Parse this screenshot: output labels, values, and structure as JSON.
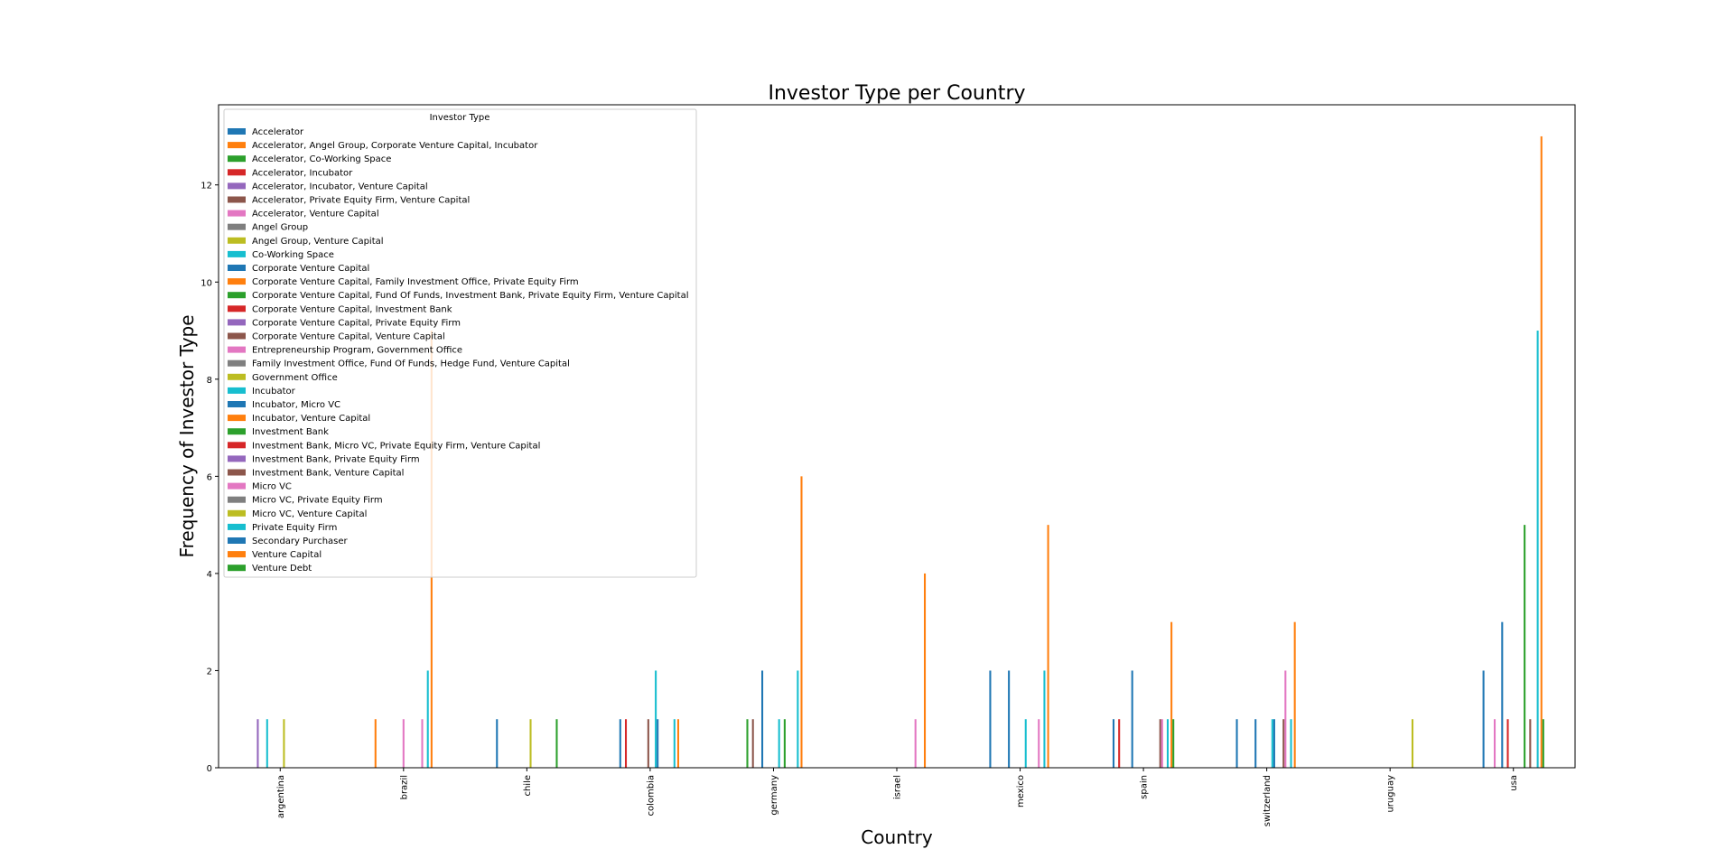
{
  "chart_data": {
    "type": "bar",
    "title": "Investor Type per Country",
    "xlabel": "Country",
    "ylabel": "Frequency of Investor Type",
    "ylim": [
      0,
      13.65
    ],
    "yticks": [
      0,
      2,
      4,
      6,
      8,
      10,
      12
    ],
    "legend_title": "Investor Type",
    "legend_placement": "upper-left",
    "grid": false,
    "categories": [
      "argentina",
      "brazil",
      "chile",
      "colombia",
      "germany",
      "israel",
      "mexico",
      "spain",
      "switzerland",
      "uruguay",
      "usa"
    ],
    "series": [
      {
        "name": "Accelerator",
        "color": "#1f77b4",
        "values": [
          0,
          0,
          1,
          1,
          0,
          0,
          2,
          1,
          1,
          0,
          2
        ]
      },
      {
        "name": "Accelerator, Angel Group, Corporate Venture Capital, Incubator",
        "color": "#ff7f0e",
        "values": [
          0,
          1,
          0,
          0,
          0,
          0,
          0,
          0,
          0,
          0,
          0
        ]
      },
      {
        "name": "Accelerator, Co-Working Space",
        "color": "#2ca02c",
        "values": [
          0,
          0,
          0,
          0,
          1,
          0,
          0,
          0,
          0,
          0,
          0
        ]
      },
      {
        "name": "Accelerator, Incubator",
        "color": "#d62728",
        "values": [
          0,
          0,
          0,
          1,
          0,
          0,
          0,
          1,
          0,
          0,
          0
        ]
      },
      {
        "name": "Accelerator, Incubator, Venture Capital",
        "color": "#9467bd",
        "values": [
          1,
          0,
          0,
          0,
          0,
          0,
          0,
          0,
          0,
          0,
          0
        ]
      },
      {
        "name": "Accelerator, Private Equity Firm, Venture Capital",
        "color": "#8c564b",
        "values": [
          0,
          0,
          0,
          0,
          1,
          0,
          0,
          0,
          0,
          0,
          0
        ]
      },
      {
        "name": "Accelerator, Venture Capital",
        "color": "#e377c2",
        "values": [
          0,
          0,
          0,
          0,
          0,
          0,
          0,
          0,
          0,
          0,
          1
        ]
      },
      {
        "name": "Angel Group",
        "color": "#7f7f7f",
        "values": [
          0,
          0,
          0,
          0,
          0,
          0,
          0,
          0,
          0,
          0,
          0
        ]
      },
      {
        "name": "Angel Group, Venture Capital",
        "color": "#bcbd22",
        "values": [
          0,
          0,
          0,
          0,
          0,
          0,
          0,
          0,
          0,
          0,
          0
        ]
      },
      {
        "name": "Co-Working Space",
        "color": "#17becf",
        "values": [
          1,
          0,
          0,
          0,
          0,
          0,
          0,
          0,
          0,
          0,
          0
        ]
      },
      {
        "name": "Corporate Venture Capital",
        "color": "#1f77b4",
        "values": [
          0,
          0,
          0,
          0,
          2,
          0,
          2,
          2,
          1,
          0,
          3
        ]
      },
      {
        "name": "Corporate Venture Capital, Family Investment Office, Private Equity Firm",
        "color": "#ff7f0e",
        "values": [
          0,
          0,
          0,
          0,
          0,
          0,
          0,
          0,
          0,
          0,
          0
        ]
      },
      {
        "name": "Corporate Venture Capital, Fund Of Funds, Investment Bank, Private Equity Firm, Venture Capital",
        "color": "#2ca02c",
        "values": [
          0,
          0,
          0,
          0,
          0,
          0,
          0,
          0,
          0,
          0,
          0
        ]
      },
      {
        "name": "Corporate Venture Capital, Investment Bank",
        "color": "#d62728",
        "values": [
          0,
          0,
          0,
          0,
          0,
          0,
          0,
          0,
          0,
          0,
          1
        ]
      },
      {
        "name": "Corporate Venture Capital, Private Equity Firm",
        "color": "#9467bd",
        "values": [
          0,
          0,
          0,
          0,
          0,
          0,
          0,
          0,
          0,
          0,
          0
        ]
      },
      {
        "name": "Corporate Venture Capital, Venture Capital",
        "color": "#8c564b",
        "values": [
          0,
          0,
          0,
          1,
          0,
          0,
          0,
          0,
          0,
          0,
          0
        ]
      },
      {
        "name": "Entrepreneurship Program, Government Office",
        "color": "#e377c2",
        "values": [
          0,
          1,
          0,
          0,
          0,
          0,
          0,
          0,
          0,
          0,
          0
        ]
      },
      {
        "name": "Family Investment Office, Fund Of Funds, Hedge Fund, Venture Capital",
        "color": "#7f7f7f",
        "values": [
          0,
          0,
          0,
          0,
          0,
          0,
          0,
          0,
          0,
          0,
          0
        ]
      },
      {
        "name": "Government Office",
        "color": "#bcbd22",
        "values": [
          1,
          0,
          1,
          0,
          0,
          0,
          0,
          0,
          0,
          0,
          0
        ]
      },
      {
        "name": "Incubator",
        "color": "#17becf",
        "values": [
          0,
          0,
          0,
          2,
          1,
          0,
          1,
          0,
          1,
          0,
          0
        ]
      },
      {
        "name": "Incubator, Micro VC",
        "color": "#1f77b4",
        "values": [
          0,
          0,
          0,
          1,
          0,
          0,
          0,
          0,
          1,
          0,
          0
        ]
      },
      {
        "name": "Incubator, Venture Capital",
        "color": "#ff7f0e",
        "values": [
          0,
          0,
          0,
          0,
          0,
          0,
          0,
          0,
          0,
          0,
          0
        ]
      },
      {
        "name": "Investment Bank",
        "color": "#2ca02c",
        "values": [
          0,
          0,
          0,
          0,
          1,
          0,
          0,
          0,
          0,
          0,
          5
        ]
      },
      {
        "name": "Investment Bank, Micro VC, Private Equity Firm, Venture Capital",
        "color": "#d62728",
        "values": [
          0,
          0,
          0,
          0,
          0,
          0,
          0,
          0,
          0,
          0,
          0
        ]
      },
      {
        "name": "Investment Bank, Private Equity Firm",
        "color": "#9467bd",
        "values": [
          0,
          0,
          0,
          0,
          0,
          0,
          0,
          0,
          0,
          0,
          0
        ]
      },
      {
        "name": "Investment Bank, Venture Capital",
        "color": "#8c564b",
        "values": [
          0,
          0,
          0,
          0,
          0,
          0,
          0,
          1,
          1,
          0,
          1
        ]
      },
      {
        "name": "Micro VC",
        "color": "#e377c2",
        "values": [
          0,
          1,
          0,
          0,
          0,
          1,
          1,
          1,
          2,
          0,
          0
        ]
      },
      {
        "name": "Micro VC, Private Equity Firm",
        "color": "#7f7f7f",
        "values": [
          0,
          0,
          0,
          0,
          0,
          0,
          0,
          0,
          0,
          0,
          0
        ]
      },
      {
        "name": "Micro VC, Venture Capital",
        "color": "#bcbd22",
        "values": [
          0,
          0,
          0,
          0,
          0,
          0,
          0,
          0,
          0,
          1,
          0
        ]
      },
      {
        "name": "Private Equity Firm",
        "color": "#17becf",
        "values": [
          0,
          2,
          0,
          1,
          2,
          0,
          2,
          1,
          1,
          0,
          9
        ]
      },
      {
        "name": "Secondary Purchaser",
        "color": "#1f77b4",
        "values": [
          0,
          0,
          0,
          0,
          0,
          0,
          0,
          0,
          0,
          0,
          0
        ]
      },
      {
        "name": "Venture Capital",
        "color": "#ff7f0e",
        "values": [
          0,
          9,
          0,
          1,
          6,
          4,
          5,
          3,
          3,
          0,
          13
        ]
      },
      {
        "name": "Venture Debt",
        "color": "#2ca02c",
        "values": [
          0,
          0,
          1,
          0,
          0,
          0,
          0,
          1,
          0,
          0,
          1
        ]
      }
    ]
  }
}
